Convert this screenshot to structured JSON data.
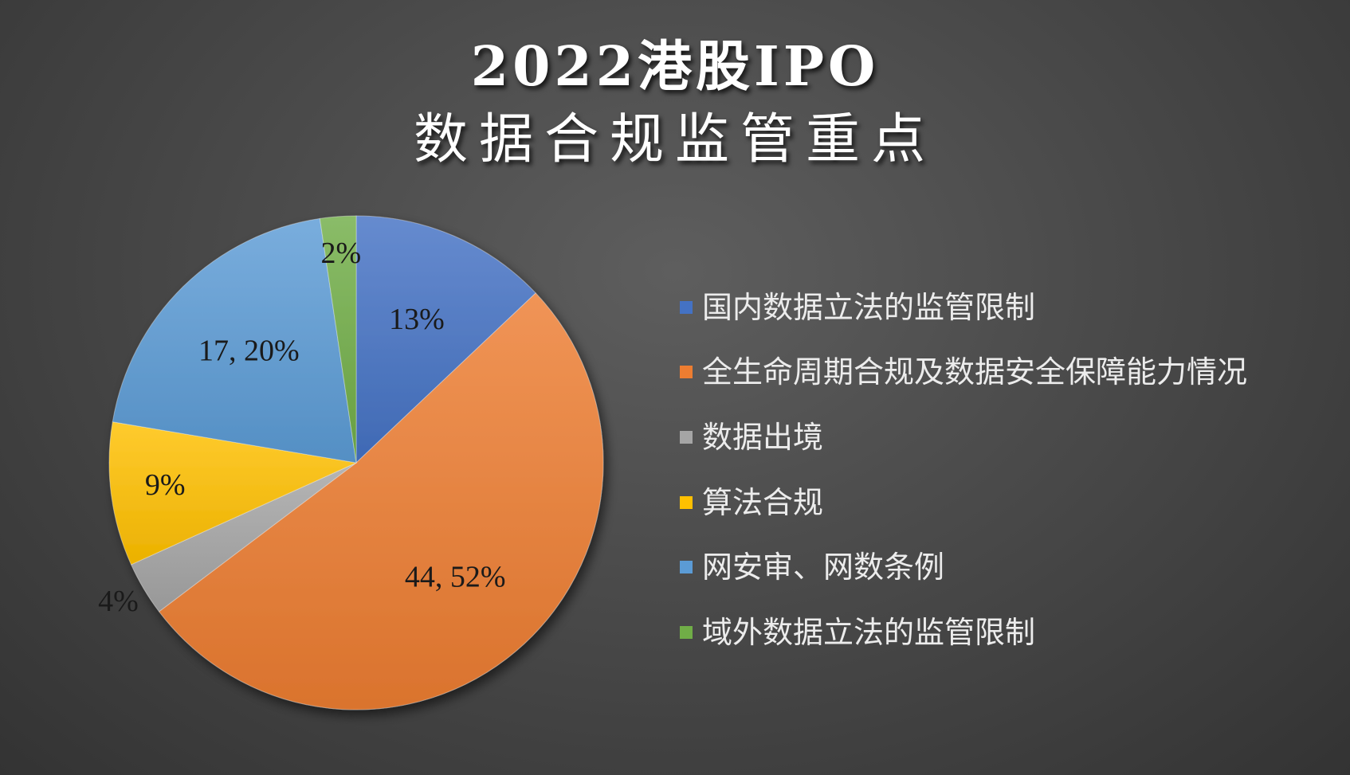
{
  "chart_data": {
    "type": "pie",
    "title": "2022港股IPO",
    "subtitle": "数据合规监管重点",
    "legend_position": "right",
    "slices": [
      {
        "name": "国内数据立法的监管限制",
        "value": 11,
        "percent": 13,
        "label": "13%",
        "color": "#4472C4"
      },
      {
        "name": "全生命周期合规及数据安全保障能力情况",
        "value": 44,
        "percent": 52,
        "label": "44, 52%",
        "color": "#ED7D31"
      },
      {
        "name": "数据出境",
        "value": 3,
        "percent": 4,
        "label": "4%",
        "color": "#A5A5A5"
      },
      {
        "name": "算法合规",
        "value": 8,
        "percent": 9,
        "label": "9%",
        "color": "#FFC000"
      },
      {
        "name": "网安审、网数条例",
        "value": 17,
        "percent": 20,
        "label": "17, 20%",
        "color": "#5B9BD5"
      },
      {
        "name": "域外数据立法的监管限制",
        "value": 2,
        "percent": 2,
        "label": "2%",
        "color": "#70AD47"
      }
    ]
  }
}
